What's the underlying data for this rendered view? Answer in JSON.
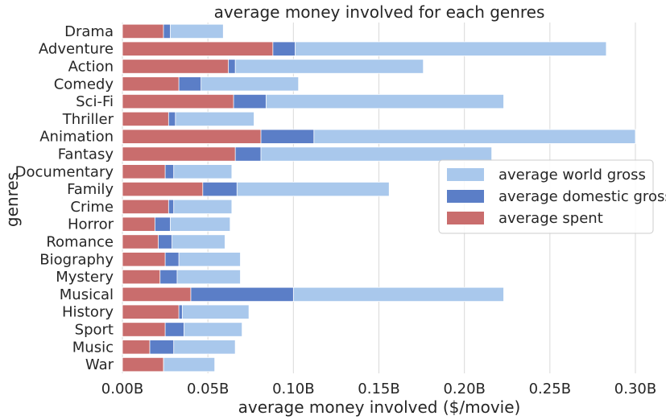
{
  "chart_data": {
    "type": "bar",
    "orientation": "horizontal",
    "stacking": "overlay",
    "title": "average money involved for each genres",
    "xlabel": "average money involved ($/movie)",
    "ylabel": "genres",
    "xlim": [
      0,
      0.3
    ],
    "x_ticks": [
      0.0,
      0.05,
      0.1,
      0.15,
      0.2,
      0.25,
      0.3
    ],
    "x_tick_labels": [
      "0.00B",
      "0.05B",
      "0.10B",
      "0.15B",
      "0.20B",
      "0.25B",
      "0.30B"
    ],
    "grid": "vertical",
    "legend_position": "right",
    "categories": [
      "Drama",
      "Adventure",
      "Action",
      "Comedy",
      "Sci-Fi",
      "Thriller",
      "Animation",
      "Fantasy",
      "Documentary",
      "Family",
      "Crime",
      "Horror",
      "Romance",
      "Biography",
      "Mystery",
      "Musical",
      "History",
      "Sport",
      "Music",
      "War"
    ],
    "series": [
      {
        "name": "average world gross",
        "color": "#a9c8ec",
        "values": [
          0.059,
          0.283,
          0.176,
          0.103,
          0.223,
          0.077,
          0.3,
          0.216,
          0.064,
          0.156,
          0.064,
          0.063,
          0.06,
          0.069,
          0.069,
          0.223,
          0.074,
          0.07,
          0.066,
          0.054
        ]
      },
      {
        "name": "average domestic gross",
        "color": "#5b7ec7",
        "values": [
          0.028,
          0.101,
          0.066,
          0.046,
          0.084,
          0.031,
          0.112,
          0.081,
          0.03,
          0.067,
          0.03,
          0.028,
          0.029,
          0.033,
          0.032,
          0.1,
          0.035,
          0.036,
          0.03,
          0.024
        ]
      },
      {
        "name": "average spent",
        "color": "#c96d6d",
        "values": [
          0.024,
          0.088,
          0.062,
          0.033,
          0.065,
          0.027,
          0.081,
          0.066,
          0.025,
          0.047,
          0.027,
          0.019,
          0.021,
          0.025,
          0.022,
          0.04,
          0.033,
          0.025,
          0.016,
          0.024
        ]
      }
    ]
  }
}
